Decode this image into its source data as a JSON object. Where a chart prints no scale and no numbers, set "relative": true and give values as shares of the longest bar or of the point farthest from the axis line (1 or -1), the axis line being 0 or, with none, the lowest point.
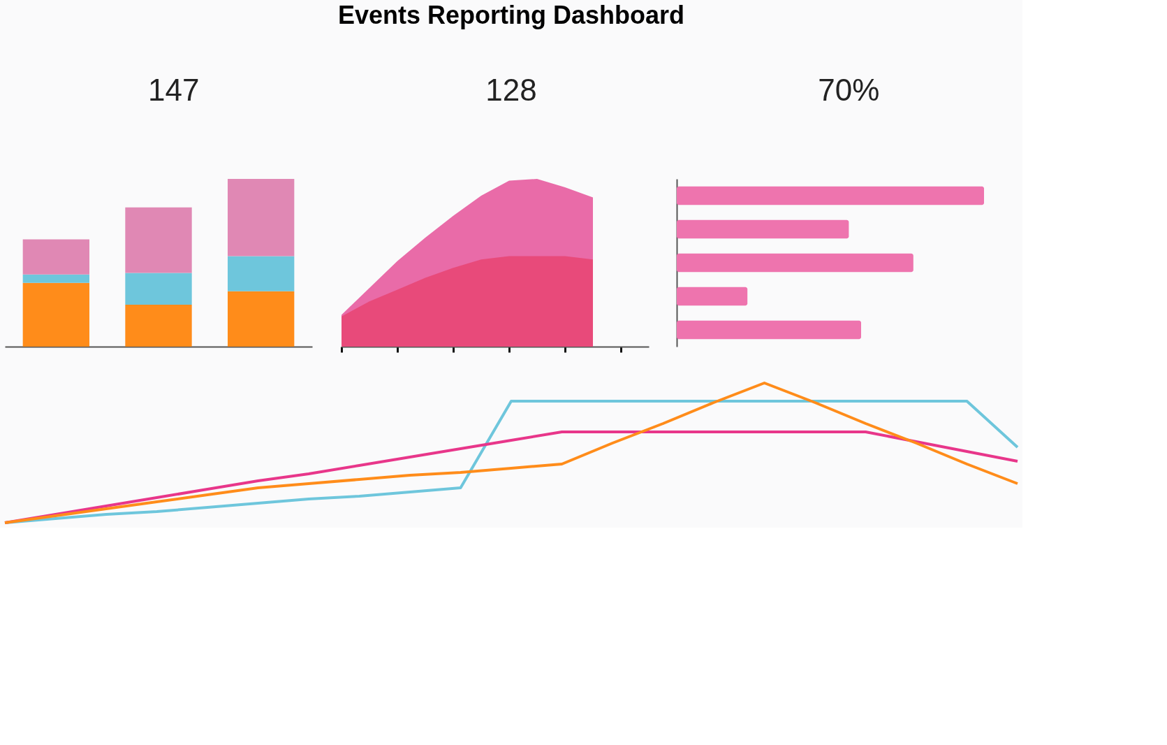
{
  "chart_data": [
    {
      "type": "other",
      "title": "Events Reporting Dashboard",
      "annotations": [
        "147",
        "128",
        "70%"
      ]
    },
    {
      "type": "bar",
      "relative": true,
      "stacked": true,
      "categories": [
        null,
        null,
        null
      ],
      "series": [
        {
          "color": "#ff8c1a",
          "values": [
            0.38,
            0.25,
            0.33
          ]
        },
        {
          "color": "#6ec6dc",
          "values": [
            0.05,
            0.19,
            0.21
          ]
        },
        {
          "color": "#e088b4",
          "values": [
            0.21,
            0.39,
            0.46
          ]
        }
      ]
    },
    {
      "type": "area",
      "relative": true,
      "categories": [
        null,
        null,
        null,
        null,
        null,
        null,
        null,
        null,
        null,
        null,
        null,
        null
      ],
      "series": [
        {
          "color": "#e96ba8",
          "values": [
            0.19,
            0.35,
            0.51,
            0.65,
            0.78,
            0.9,
            0.99,
            1,
            0.95,
            0.89,
            null,
            null
          ]
        },
        {
          "color": "#e84a7a",
          "values": [
            0.18,
            0.27,
            0.34,
            0.41,
            0.47,
            0.52,
            0.54,
            0.54,
            0.54,
            0.52,
            null,
            null
          ]
        }
      ]
    },
    {
      "type": "bar",
      "relative": true,
      "orientation": "horizontal",
      "categories": [
        null,
        null,
        null,
        null,
        null
      ],
      "color": "#ee74ae",
      "values": [
        1,
        0.56,
        0.77,
        0.23,
        0.6
      ]
    },
    {
      "type": "line",
      "relative": true,
      "categories": [
        null,
        null,
        null,
        null,
        null,
        null,
        null,
        null,
        null,
        null,
        null,
        null,
        null,
        null,
        null,
        null,
        null,
        null,
        null,
        null,
        null
      ],
      "series": [
        {
          "color": "#6ec6dc",
          "values": [
            0,
            0.03,
            0.06,
            0.08,
            0.11,
            0.14,
            0.17,
            0.19,
            0.22,
            0.25,
            0.87,
            0.87,
            0.87,
            0.87,
            0.87,
            0.87,
            0.87,
            0.87,
            0.87,
            0.87,
            0.54
          ]
        },
        {
          "color": "#e8368a",
          "values": [
            0,
            0.06,
            0.12,
            0.18,
            0.24,
            0.3,
            0.35,
            0.41,
            0.47,
            0.53,
            0.59,
            0.65,
            0.65,
            0.65,
            0.65,
            0.65,
            0.65,
            0.65,
            0.58,
            0.51,
            0.44
          ]
        },
        {
          "color": "#ff8c1a",
          "values": [
            0,
            0.05,
            0.1,
            0.15,
            0.2,
            0.25,
            0.28,
            0.31,
            0.34,
            0.36,
            0.39,
            0.42,
            0.57,
            0.71,
            0.86,
            1,
            0.86,
            0.71,
            0.57,
            0.42,
            0.28
          ]
        }
      ]
    }
  ]
}
